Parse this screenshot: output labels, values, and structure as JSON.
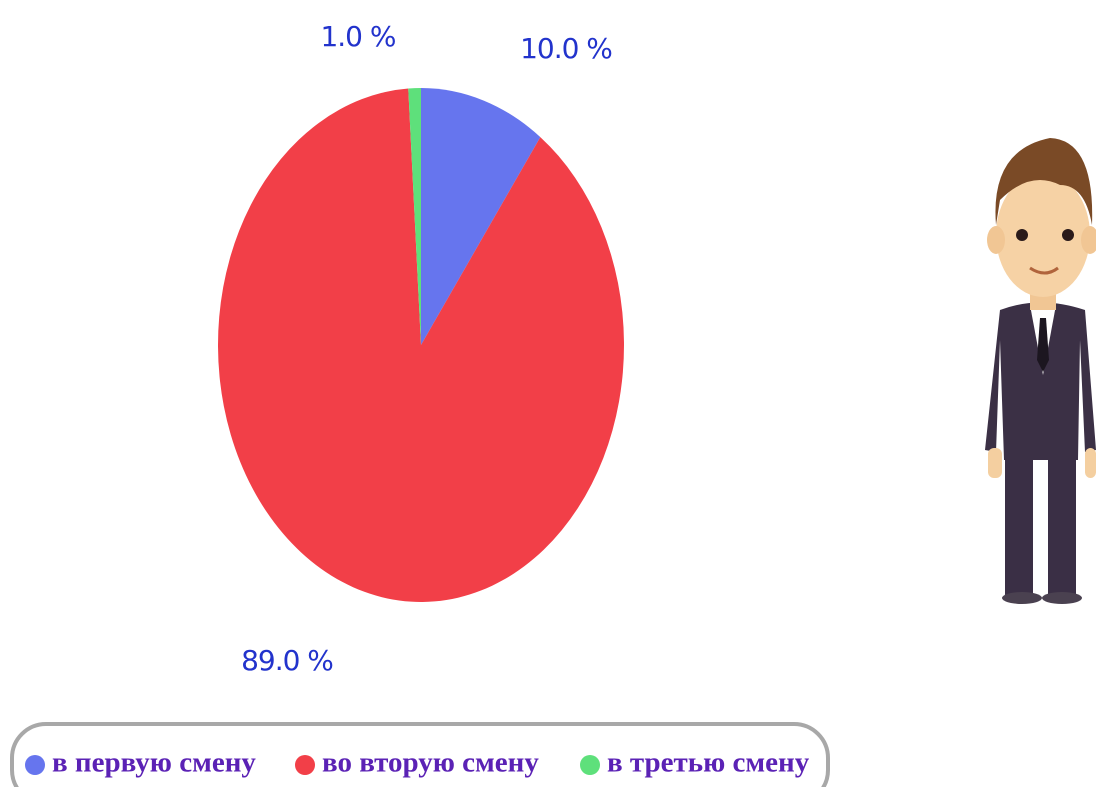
{
  "chart_data": {
    "type": "pie",
    "categories": [
      "в первую смену",
      "во вторую смену",
      "в третью смену"
    ],
    "values": [
      10,
      89,
      1
    ],
    "value_labels": [
      "10.0 %",
      "89.0 %",
      "1.0 %"
    ],
    "colors": [
      "#6675ee",
      "#f23f48",
      "#5ee07b"
    ],
    "legend": "bottom"
  }
}
